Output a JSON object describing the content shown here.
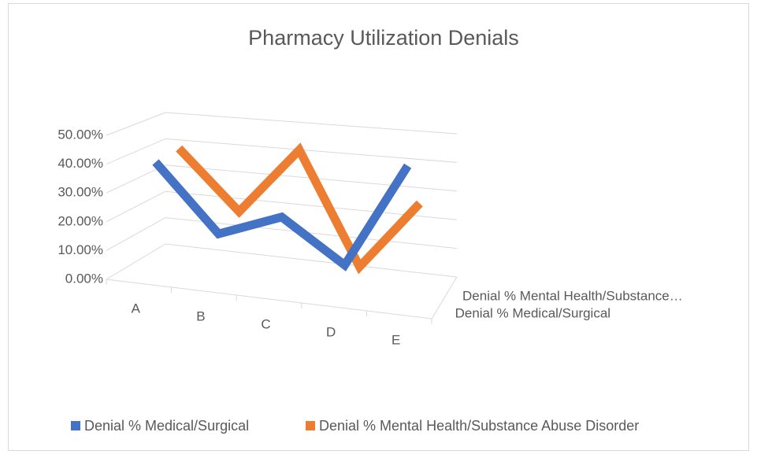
{
  "chart_data": {
    "type": "line3d",
    "title": "Pharmacy Utilization Denials",
    "categories": [
      "A",
      "B",
      "C",
      "D",
      "E"
    ],
    "series": [
      {
        "name": "Denial % Medical/Surgical",
        "color": "#4472c4",
        "values": [
          39,
          16,
          24,
          10,
          45
        ]
      },
      {
        "name": "Denial % Mental Health/Substance Abuse Disorder",
        "color": "#ed7d31",
        "values": [
          40,
          19,
          43,
          4,
          28
        ]
      }
    ],
    "depth_labels": [
      "Denial % Medical/Surgical",
      "Denial % Mental Health/Substance…"
    ],
    "ylim": [
      0,
      50
    ],
    "yticks": [
      {
        "value": 0,
        "label": "0.00%"
      },
      {
        "value": 10,
        "label": "10.00%"
      },
      {
        "value": 20,
        "label": "20.00%"
      },
      {
        "value": 30,
        "label": "30.00%"
      },
      {
        "value": 40,
        "label": "40.00%"
      },
      {
        "value": 50,
        "label": "50.00%"
      }
    ],
    "grid": true,
    "legend": "bottom"
  }
}
